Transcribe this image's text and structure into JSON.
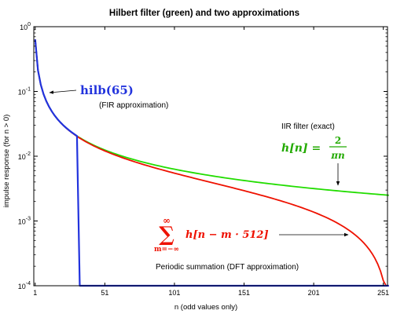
{
  "chart_data": {
    "type": "line",
    "title": "Hilbert filter (green) and two approximations",
    "xlabel": "n (odd values only)",
    "ylabel": "impulse response (for n > 0)",
    "x_scale": "linear",
    "y_scale": "log",
    "xlim": [
      0,
      254
    ],
    "ylim": [
      0.0001,
      1
    ],
    "x_ticks": [
      1,
      51,
      101,
      151,
      201,
      251
    ],
    "y_ticks": [
      {
        "value": 1,
        "base": "10",
        "exp": "0"
      },
      {
        "value": 0.1,
        "base": "10",
        "exp": "-1"
      },
      {
        "value": 0.01,
        "base": "10",
        "exp": "-2"
      },
      {
        "value": 0.001,
        "base": "10",
        "exp": "-3"
      },
      {
        "value": 0.0001,
        "base": "10",
        "exp": "-4"
      }
    ],
    "grid": false,
    "series": [
      {
        "key": "iir",
        "color": "#22dd00",
        "formula": "h[n] = 2 / (π n)",
        "x_range": [
          1,
          255
        ],
        "step": 2
      },
      {
        "key": "periodic",
        "color": "#ee1100",
        "formula": "Σ h[n − m·512], m = −∞ … ∞",
        "x_range": [
          1,
          255
        ],
        "step": 2
      },
      {
        "key": "fir",
        "color": "#2233dd",
        "formula": "hilb(65)",
        "x": [
          1,
          3,
          5,
          7,
          9,
          11,
          13,
          15,
          17,
          19,
          21,
          23,
          25,
          27,
          29,
          31,
          33,
          35,
          255
        ],
        "values": [
          0.6366,
          0.2122,
          0.1273,
          0.0909,
          0.0707,
          0.0579,
          0.049,
          0.0424,
          0.0374,
          0.0335,
          0.0303,
          0.0277,
          0.0255,
          0.0236,
          0.022,
          0.0205,
          0.0001,
          0.0001,
          0.0001
        ]
      }
    ],
    "annotations": {
      "fir_label": "hilb(65)",
      "fir_note": "(FIR approximation)",
      "iir_note": "IIR filter (exact)",
      "iir_lhs": "h[n] =",
      "iir_num": "2",
      "iir_den": "πn",
      "sum_symbol": "∑",
      "sum_upper": "∞",
      "sum_lower": "m=−∞",
      "sum_body": "h[n − m · 512]",
      "periodic_note": "Periodic summation (DFT approximation)"
    }
  },
  "colors": {
    "fir": "#2233dd",
    "iir": "#22aa00",
    "periodic": "#ee1100",
    "axis": "#000000"
  }
}
